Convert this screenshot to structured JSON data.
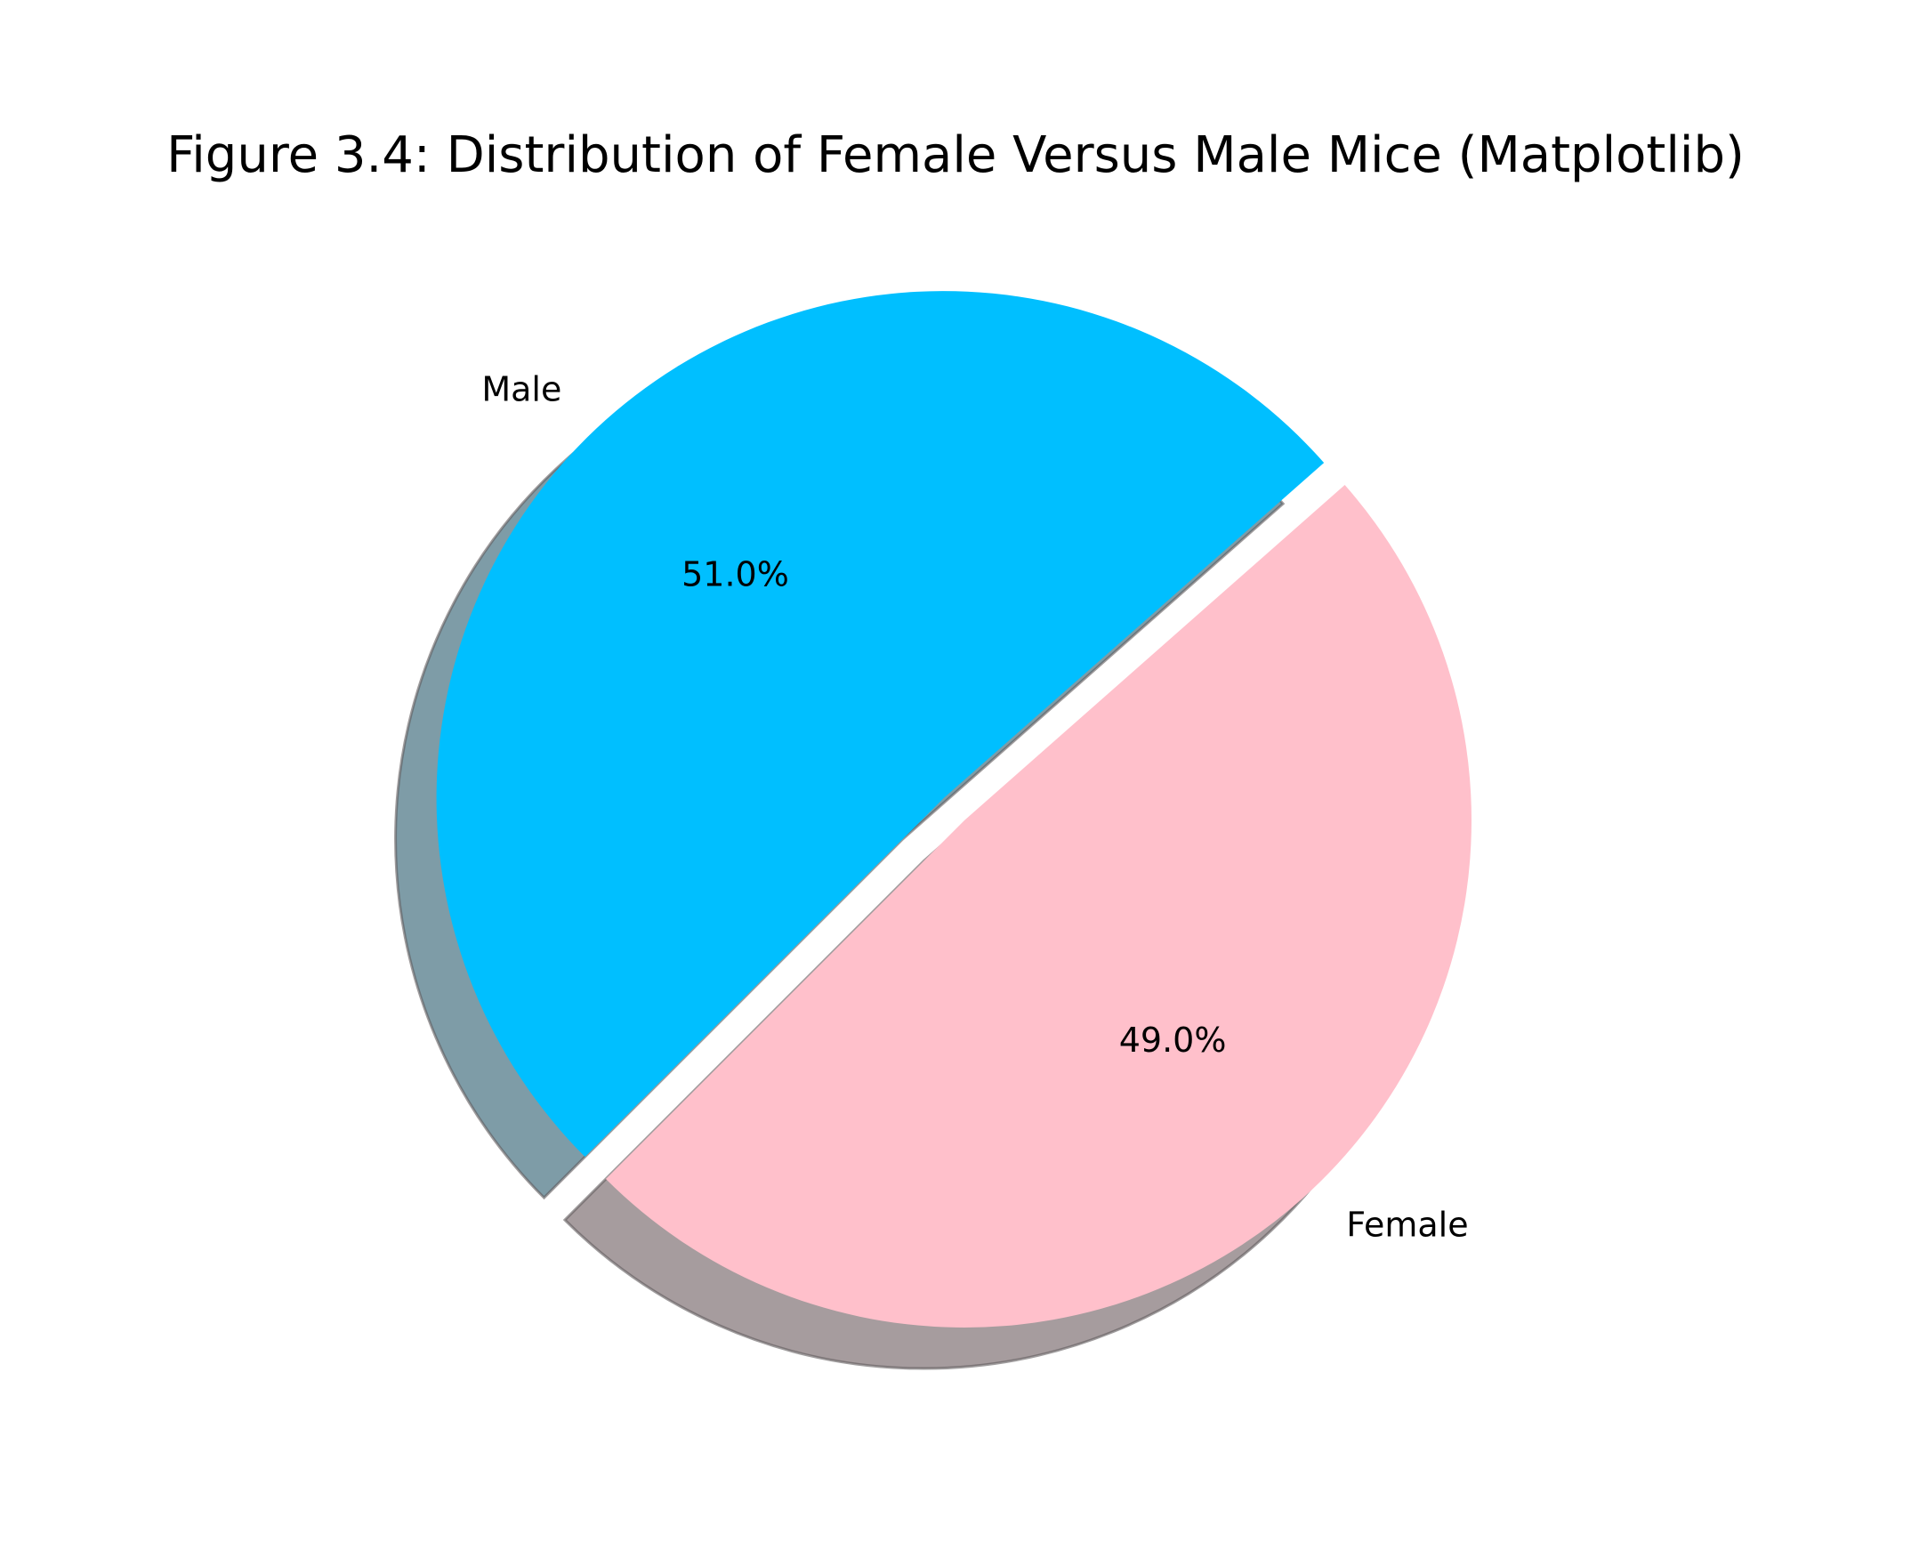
{
  "chart_data": {
    "type": "pie",
    "title": "Figure 3.4: Distribution of Female Versus Male Mice (Matplotlib)",
    "slices": [
      {
        "label": "Female",
        "value": 49.0,
        "pct_label": "49.0%",
        "color": "#ffc0cb",
        "shadow_color": "#a69c9e",
        "exploded": false
      },
      {
        "label": "Male",
        "value": 51.0,
        "pct_label": "51.0%",
        "color": "#00bfff",
        "shadow_color": "#7e9ca7",
        "exploded": true
      }
    ],
    "start_angle_deg": 225,
    "shadow": true,
    "autopct": "%1.1f%%"
  }
}
